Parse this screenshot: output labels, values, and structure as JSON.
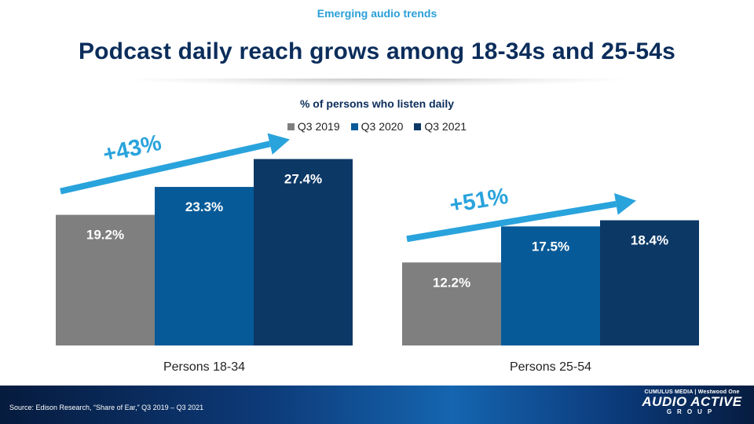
{
  "header": {
    "kicker": "Emerging audio trends",
    "title": "Podcast daily reach grows among 18-34s and 25-54s"
  },
  "chart_data": {
    "type": "bar",
    "title": "% of persons who listen daily",
    "categories": [
      "Persons 18-34",
      "Persons 25-54"
    ],
    "series": [
      {
        "name": "Q3 2019",
        "color": "#7f7f7f",
        "values": [
          19.2,
          12.2
        ],
        "labels": [
          "19.2%",
          "12.2%"
        ]
      },
      {
        "name": "Q3 2020",
        "color": "#075a98",
        "values": [
          23.3,
          17.5
        ],
        "labels": [
          "23.3%",
          "17.5%"
        ]
      },
      {
        "name": "Q3 2021",
        "color": "#0c3866",
        "values": [
          27.4,
          18.4
        ],
        "labels": [
          "27.4%",
          "18.4%"
        ]
      }
    ],
    "ylim": [
      0,
      30
    ],
    "grid": false,
    "legend_position": "top",
    "annotations": [
      {
        "category": "Persons 18-34",
        "text": "+43%"
      },
      {
        "category": "Persons 25-54",
        "text": "+51%"
      }
    ],
    "arrow_color": "#29a3dc"
  },
  "footer": {
    "source": "Source: Edison Research, “Share of Ear,” Q3 2019 – Q3 2021",
    "logo_top": "CUMULUS MEDIA | Westwood One",
    "logo_main": "AUDIO ACTIVE",
    "logo_sub": "GROUP"
  }
}
